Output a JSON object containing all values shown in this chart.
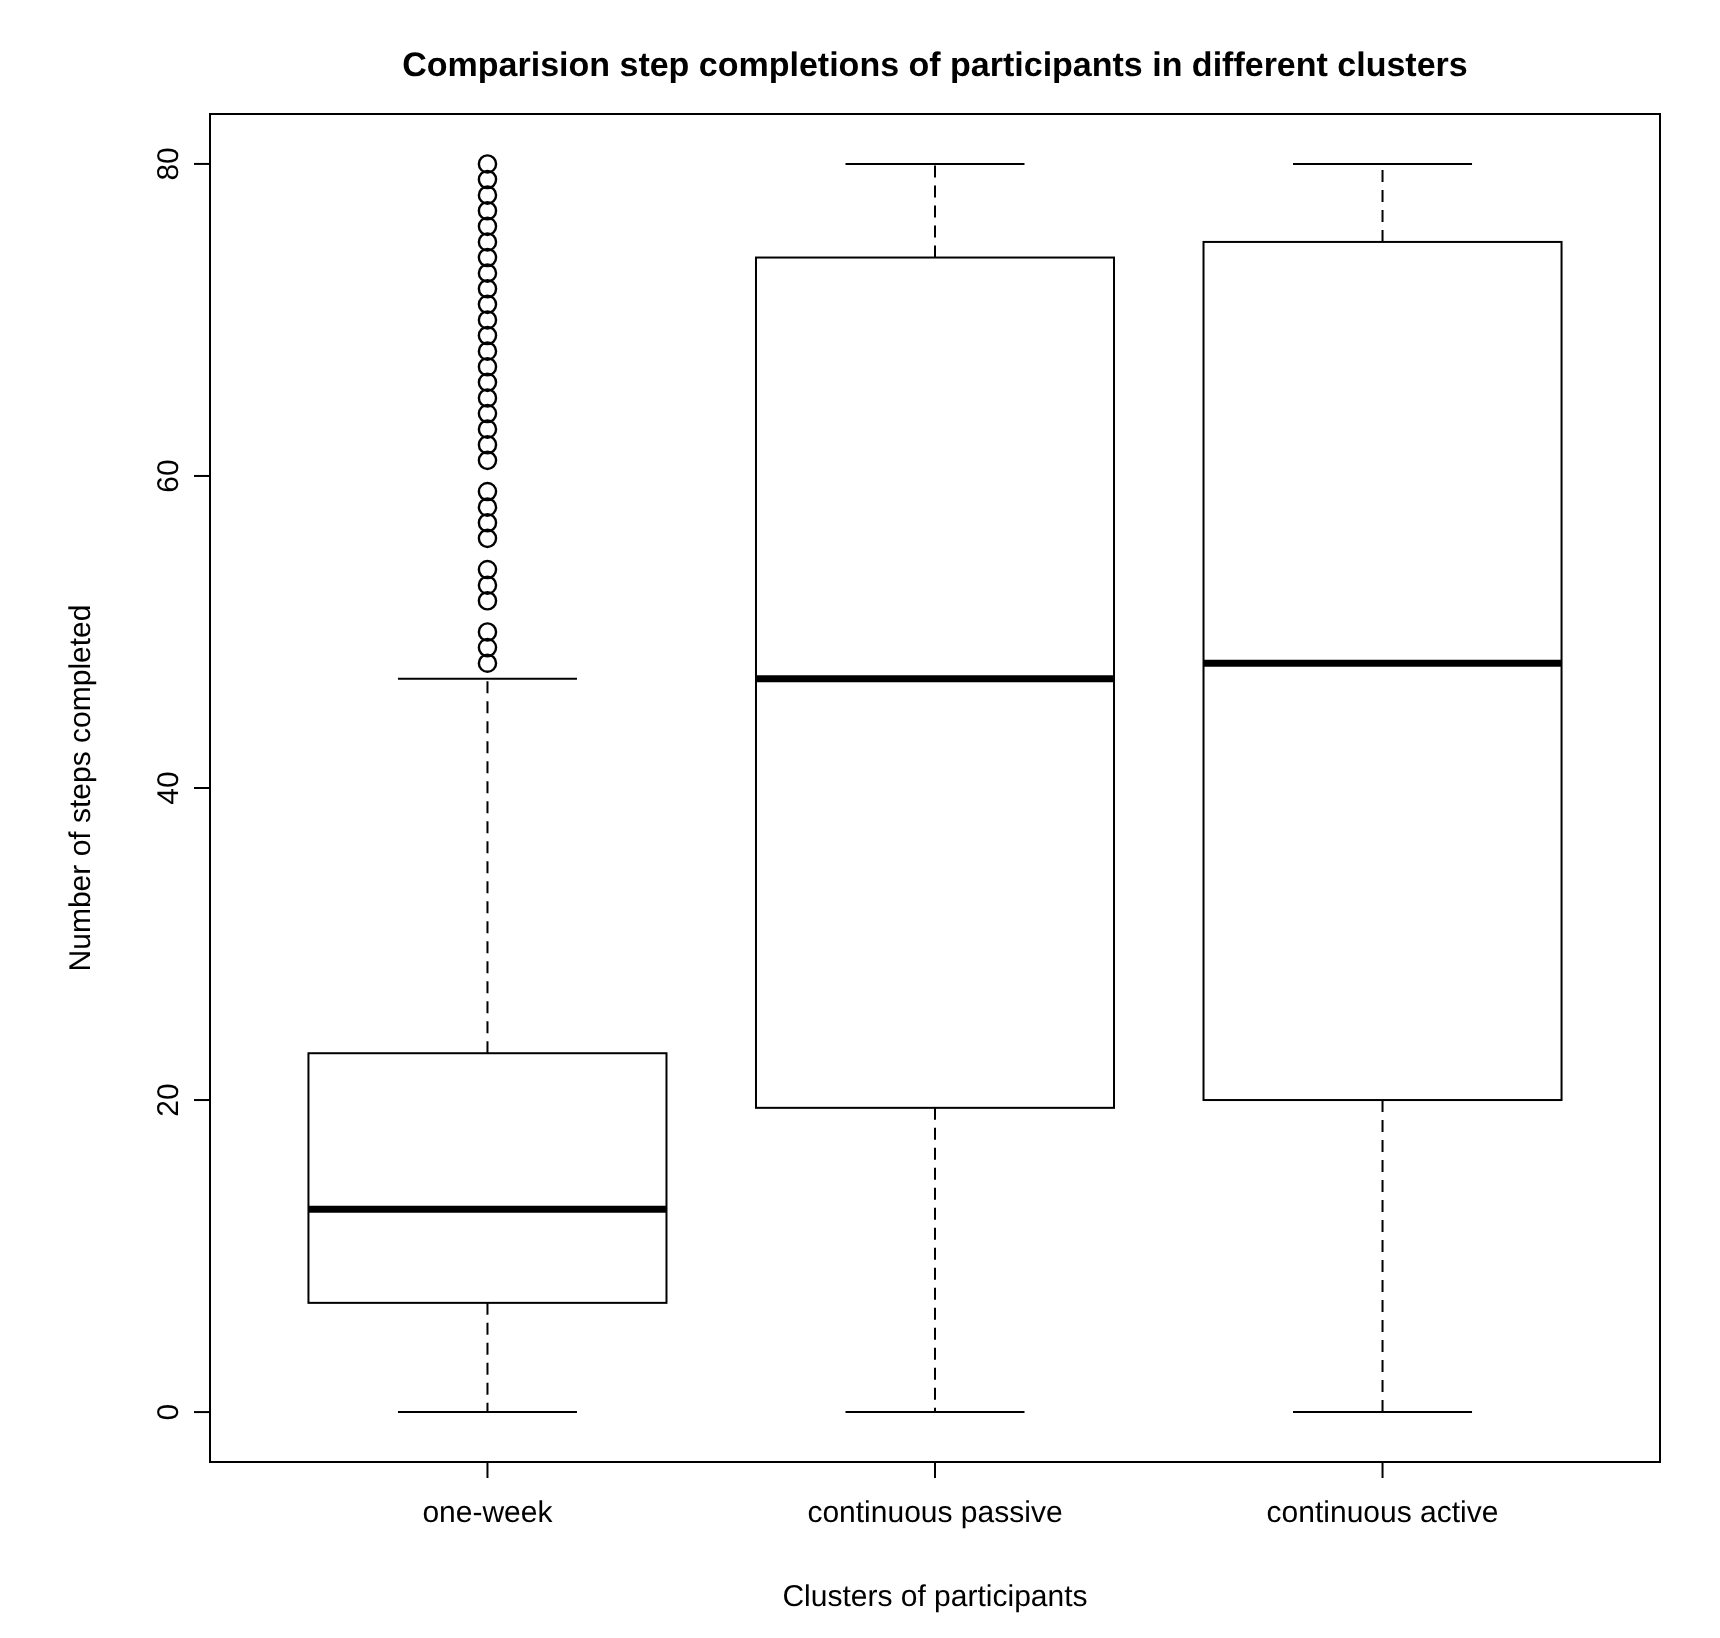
{
  "chart_data": {
    "type": "box",
    "title": "Comparision step completions of participants in different clusters",
    "xlabel": "Clusters of participants",
    "ylabel": "Number of steps completed",
    "categories": [
      "one-week",
      "continuous passive",
      "continuous active"
    ],
    "boxes": [
      {
        "low": 0,
        "q1": 7,
        "median": 13,
        "q3": 23,
        "high": 47,
        "outliers": [
          48,
          49,
          50,
          52,
          53,
          54,
          56,
          57,
          58,
          59,
          61,
          62,
          63,
          64,
          65,
          66,
          67,
          68,
          69,
          70,
          71,
          72,
          73,
          74,
          75,
          76,
          77,
          78,
          79,
          80
        ]
      },
      {
        "low": 0,
        "q1": 19.5,
        "median": 47,
        "q3": 74,
        "high": 80
      },
      {
        "low": 0,
        "q1": 20,
        "median": 48,
        "q3": 75,
        "high": 80
      }
    ],
    "ylim": [
      -3.2,
      83.2
    ],
    "yticks": [
      0,
      20,
      40,
      60,
      80
    ],
    "grid": false
  }
}
